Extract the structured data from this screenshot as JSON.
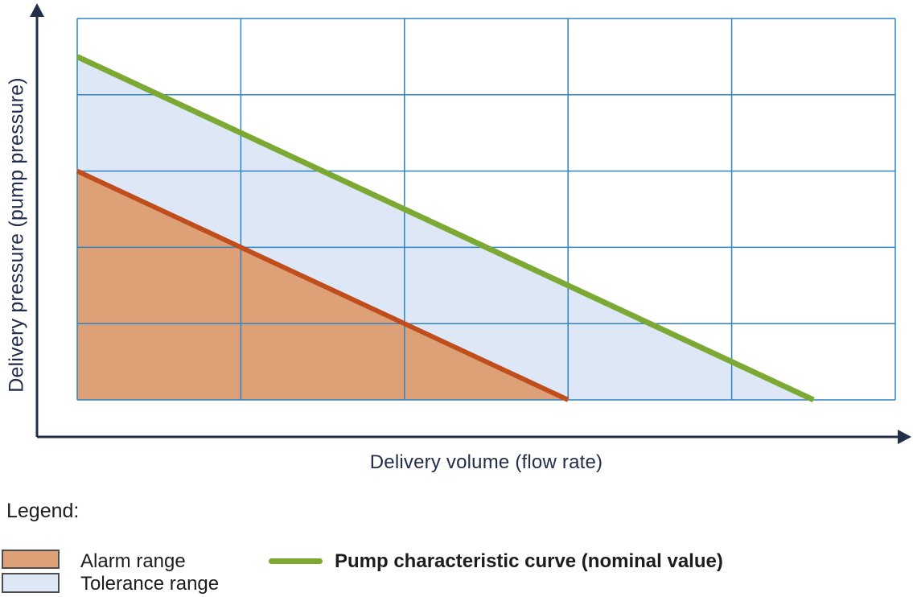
{
  "colors": {
    "axis": "#232E49",
    "grid": "#2F82C4",
    "nominal_curve": "#7CA933",
    "alarm_boundary": "#C04E1D",
    "alarm_fill": "#DDA077",
    "tolerance_fill": "#DEE7F5",
    "axis_label_text": "#222D4B",
    "legend_text": "#1D1D1B",
    "swatch_border": "#4D4D4D"
  },
  "chart": {
    "x_axis_label": "Delivery volume (flow rate)",
    "y_axis_label": "Delivery pressure (pump pressure)"
  },
  "legend": {
    "title": "Legend:",
    "items": [
      {
        "label": "Alarm range",
        "swatch_color": "alarm_fill"
      },
      {
        "label": "Tolerance range",
        "swatch_color": "tolerance_fill"
      },
      {
        "label": "Pump characteristic curve (nominal value)",
        "swatch_color": "nominal_curve"
      }
    ]
  },
  "chart_data": {
    "type": "area",
    "title": "",
    "xlabel": "Delivery volume (flow rate)",
    "ylabel": "Delivery pressure (pump pressure)",
    "x_range": [
      0,
      5
    ],
    "y_range": [
      0,
      5
    ],
    "grid": {
      "cols": 5,
      "rows": 5,
      "visible": true
    },
    "axis_ticks_labeled": false,
    "series": [
      {
        "name": "Pump characteristic curve (nominal value)",
        "type": "line",
        "points": [
          [
            0,
            4.5
          ],
          [
            4.5,
            0
          ]
        ]
      },
      {
        "name": "Alarm range boundary",
        "type": "line",
        "points": [
          [
            0,
            3
          ],
          [
            3,
            0
          ]
        ]
      }
    ],
    "regions": [
      {
        "name": "Tolerance range",
        "points": [
          [
            0,
            4.5
          ],
          [
            4.5,
            0
          ],
          [
            0,
            0
          ]
        ]
      },
      {
        "name": "Alarm range",
        "points": [
          [
            0,
            3
          ],
          [
            3,
            0
          ],
          [
            0,
            0
          ]
        ]
      }
    ],
    "legend_position": "below"
  }
}
